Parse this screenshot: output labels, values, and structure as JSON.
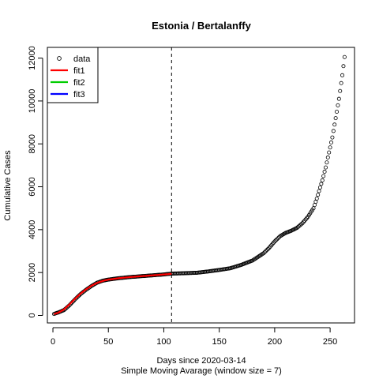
{
  "chart_data": {
    "type": "scatter",
    "title": "Estonia / Bertalanffy",
    "xlabel": "Days since 2020-03-14",
    "subtitle": "Simple Moving Avarage (window size = 7)",
    "ylabel": "Cumulative Cases",
    "xlim": [
      -5,
      272
    ],
    "ylim": [
      -350,
      12500
    ],
    "xticks": [
      0,
      50,
      100,
      150,
      200,
      250
    ],
    "yticks": [
      0,
      2000,
      4000,
      6000,
      8000,
      10000,
      12000
    ],
    "vline_x": 107,
    "legend": {
      "position": "top-left",
      "entries": [
        {
          "label": "data",
          "kind": "point",
          "color": "#000000"
        },
        {
          "label": "fit1",
          "kind": "line",
          "color": "#ff0000"
        },
        {
          "label": "fit2",
          "kind": "line",
          "color": "#00cd00"
        },
        {
          "label": "fit3",
          "kind": "line",
          "color": "#0000ff"
        }
      ]
    },
    "data_knots": [
      [
        1,
        70
      ],
      [
        5,
        140
      ],
      [
        10,
        250
      ],
      [
        15,
        480
      ],
      [
        20,
        750
      ],
      [
        25,
        1000
      ],
      [
        30,
        1200
      ],
      [
        35,
        1380
      ],
      [
        40,
        1530
      ],
      [
        45,
        1620
      ],
      [
        50,
        1670
      ],
      [
        60,
        1740
      ],
      [
        70,
        1790
      ],
      [
        80,
        1830
      ],
      [
        90,
        1870
      ],
      [
        100,
        1910
      ],
      [
        107,
        1950
      ],
      [
        120,
        1970
      ],
      [
        130,
        1990
      ],
      [
        140,
        2050
      ],
      [
        150,
        2120
      ],
      [
        160,
        2200
      ],
      [
        170,
        2360
      ],
      [
        180,
        2560
      ],
      [
        190,
        2900
      ],
      [
        195,
        3150
      ],
      [
        200,
        3450
      ],
      [
        205,
        3700
      ],
      [
        210,
        3850
      ],
      [
        215,
        3950
      ],
      [
        220,
        4080
      ],
      [
        225,
        4300
      ],
      [
        230,
        4600
      ],
      [
        235,
        5000
      ],
      [
        238,
        5450
      ],
      [
        240,
        5800
      ],
      [
        243,
        6300
      ],
      [
        246,
        6900
      ],
      [
        249,
        7600
      ],
      [
        252,
        8300
      ],
      [
        255,
        9200
      ],
      [
        258,
        10100
      ],
      [
        261,
        11200
      ],
      [
        263,
        12050
      ]
    ],
    "fit1_knots": [
      [
        1,
        60
      ],
      [
        5,
        130
      ],
      [
        10,
        280
      ],
      [
        15,
        520
      ],
      [
        20,
        780
      ],
      [
        25,
        1020
      ],
      [
        30,
        1220
      ],
      [
        35,
        1390
      ],
      [
        40,
        1520
      ],
      [
        45,
        1610
      ],
      [
        50,
        1670
      ],
      [
        60,
        1740
      ],
      [
        70,
        1790
      ],
      [
        80,
        1830
      ],
      [
        90,
        1870
      ],
      [
        100,
        1910
      ],
      [
        107,
        1940
      ]
    ]
  }
}
